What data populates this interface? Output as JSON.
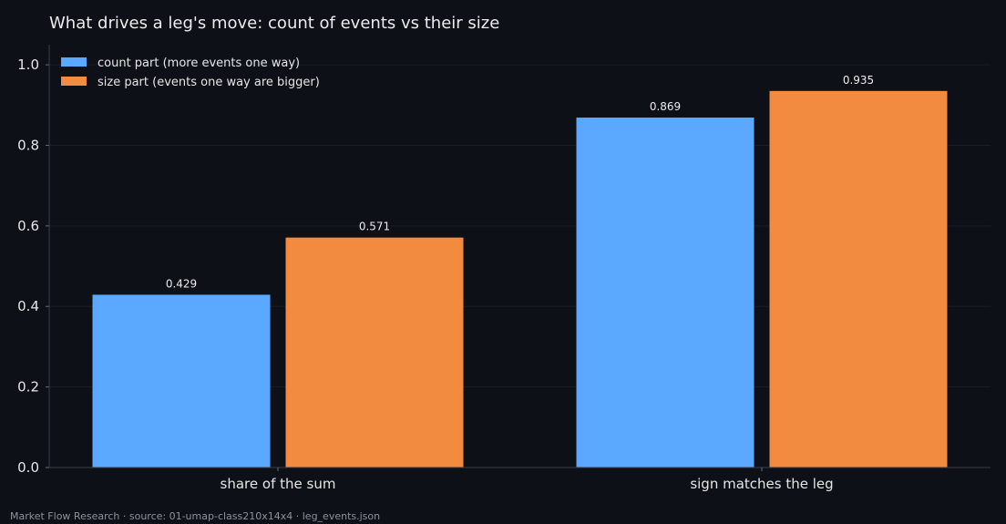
{
  "chart_data": {
    "type": "bar",
    "title": "What drives a leg's move: count of events vs their size",
    "xlabel": "",
    "ylabel": "",
    "categories": [
      "share of the sum",
      "sign matches the leg"
    ],
    "series": [
      {
        "name": "count part (more events one way)",
        "values": [
          0.429,
          0.869
        ],
        "color": "#5aa8ff"
      },
      {
        "name": "size part (events one way are bigger)",
        "values": [
          0.571,
          0.935
        ],
        "color": "#f28a40"
      }
    ],
    "data_labels": [
      [
        "0.429",
        "0.869"
      ],
      [
        "0.571",
        "0.935"
      ]
    ],
    "ylim": [
      0,
      1.05
    ],
    "yticks": [
      0.0,
      0.2,
      0.4,
      0.6,
      0.8,
      1.0
    ],
    "ytick_labels": [
      "0.0",
      "0.2",
      "0.4",
      "0.6",
      "0.8",
      "1.0"
    ],
    "grid": true,
    "legend_position": "top-left"
  },
  "footer": "Market Flow Research · source: 01-umap-class210x14x4 · leg_events.json"
}
